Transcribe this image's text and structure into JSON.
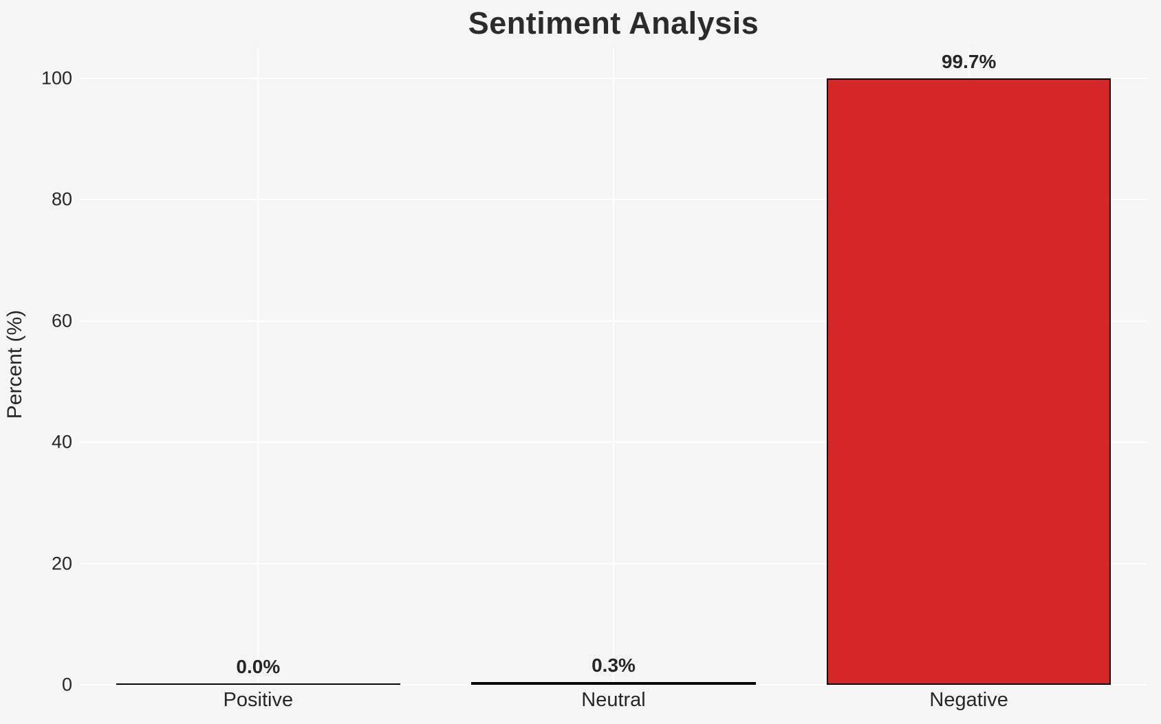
{
  "title": "Sentiment Analysis",
  "chart_data": {
    "type": "bar",
    "title": "Sentiment Analysis",
    "xlabel": "",
    "ylabel": "Percent (%)",
    "categories": [
      "Positive",
      "Neutral",
      "Negative"
    ],
    "values": [
      0.0,
      0.3,
      99.7
    ],
    "value_labels": [
      "0.0%",
      "0.3%",
      "99.7%"
    ],
    "yticks": [
      0,
      20,
      40,
      60,
      80,
      100
    ],
    "ylim": [
      0,
      105
    ],
    "grid": "on",
    "legend": "none",
    "bar_fill_color": "#d62728",
    "bar_edge_color": "#000000",
    "background_color": "#f5f5f5",
    "gridline_color": "#ffffff",
    "text_color": "#262626"
  }
}
